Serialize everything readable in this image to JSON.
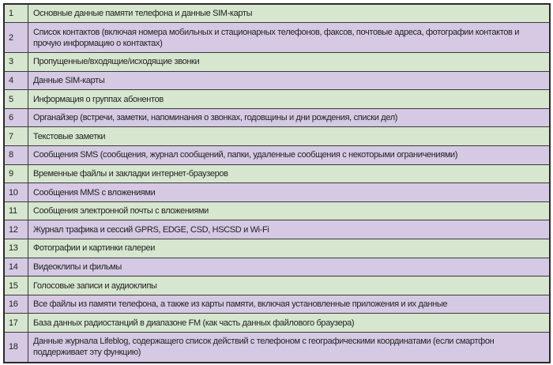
{
  "colors": {
    "odd_row": "#d6e6cf",
    "even_row": "#d5c9e3",
    "border": "#3a3a3a"
  },
  "rows": [
    {
      "num": "1",
      "text": "Основные данные памяти телефона и данные SIM-карты"
    },
    {
      "num": "2",
      "text": "Список контактов (включая номера мобильных и стационарных телефонов, факсов, почтовые адреса, фотографии контактов и прочую информацию о контактах)"
    },
    {
      "num": "3",
      "text": "Пропущенные/входящие/исходящие звонки"
    },
    {
      "num": "4",
      "text": "Данные SIM-карты"
    },
    {
      "num": "5",
      "text": "Информация о группах абонентов"
    },
    {
      "num": "6",
      "text": "Органайзер (встречи, заметки, напоминания о звонках, годовщины и дни рождения, списки дел)"
    },
    {
      "num": "7",
      "text": "Текстовые заметки"
    },
    {
      "num": "8",
      "text": "Сообщения SMS (сообщения, журнал сообщений, папки, удаленные сообщения с некоторыми ограничениями)"
    },
    {
      "num": "9",
      "text": "Временные файлы и закладки интернет-браузеров"
    },
    {
      "num": "10",
      "text": "Сообщения MMS с вложениями"
    },
    {
      "num": "11",
      "text": "Сообщения электронной почты с вложениями"
    },
    {
      "num": "12",
      "text": "Журнал трафика и сессий GPRS, EDGE, CSD, HSCSD и Wi-Fi"
    },
    {
      "num": "13",
      "text": "Фотографии и картинки галереи"
    },
    {
      "num": "14",
      "text": "Видеоклипы и фильмы"
    },
    {
      "num": "15",
      "text": "Голосовые записи и аудиоклипы"
    },
    {
      "num": "16",
      "text": "Все файлы из памяти телефона, а также из карты памяти, включая установленные приложения и их данные"
    },
    {
      "num": "17",
      "text": "База данных радиостанций в диапазоне FM (как часть данных файлового браузера)"
    },
    {
      "num": "18",
      "text": "Данные журнала Lifeblog, содержащего список действий с телефоном с географическими координатами (если смартфон поддерживает эту функцию)"
    }
  ]
}
